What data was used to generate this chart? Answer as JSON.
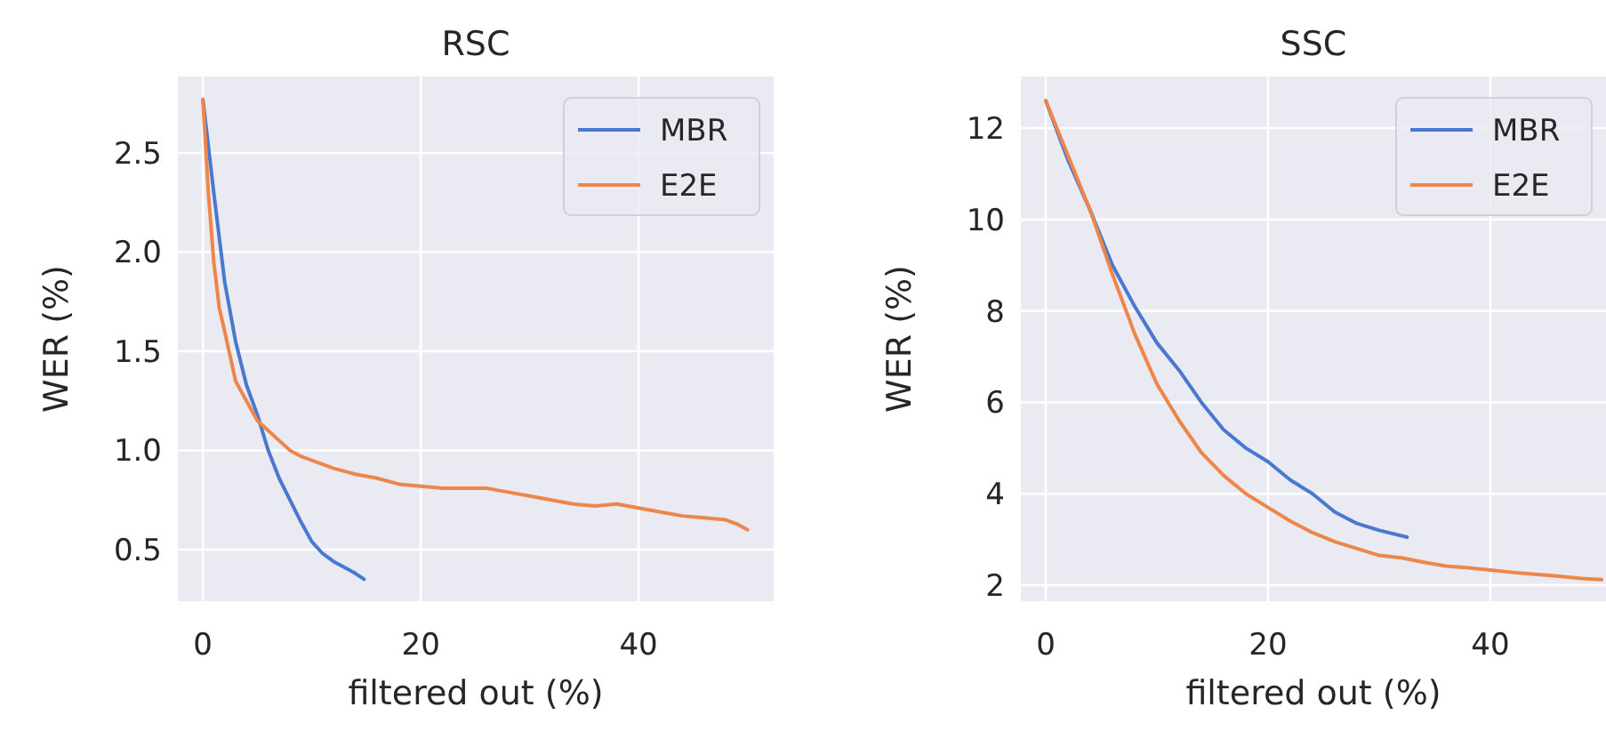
{
  "chart_data": [
    {
      "type": "line",
      "title": "RSC",
      "xlabel": "filtered out (%)",
      "ylabel": "WER (%)",
      "xlim": [
        -2.3,
        52.4
      ],
      "ylim": [
        0.24,
        2.886
      ],
      "xticks": [
        0,
        20,
        40
      ],
      "yticks": [
        0.5,
        {
          "value": 1,
          "label": "1.0"
        },
        1.5,
        {
          "value": 2,
          "label": "2.0"
        },
        2.5
      ],
      "grid": true,
      "legend": "top right",
      "line_style": "solid",
      "marker": "none",
      "series": [
        {
          "name": "MBR",
          "color": "#4878d0",
          "x": [
            0,
            1,
            2,
            3,
            4,
            5,
            6,
            7,
            8,
            9,
            10,
            11,
            12,
            13,
            14,
            14.8
          ],
          "values": [
            2.77,
            2.3,
            1.85,
            1.55,
            1.33,
            1.18,
            1.0,
            0.86,
            0.75,
            0.64,
            0.54,
            0.48,
            0.44,
            0.41,
            0.38,
            0.35
          ]
        },
        {
          "name": "E2E",
          "color": "#ee854a",
          "x": [
            0,
            0.5,
            1,
            1.5,
            2,
            3,
            4,
            5,
            6,
            7,
            8,
            9,
            10,
            12,
            14,
            16,
            18,
            20,
            22,
            24,
            26,
            28,
            30,
            32,
            34,
            36,
            38,
            40,
            42,
            44,
            46,
            48,
            49,
            50
          ],
          "values": [
            2.77,
            2.3,
            1.95,
            1.72,
            1.6,
            1.35,
            1.25,
            1.15,
            1.1,
            1.05,
            1.0,
            0.97,
            0.95,
            0.91,
            0.88,
            0.86,
            0.83,
            0.82,
            0.81,
            0.81,
            0.81,
            0.79,
            0.77,
            0.75,
            0.73,
            0.72,
            0.73,
            0.71,
            0.69,
            0.67,
            0.66,
            0.65,
            0.63,
            0.6
          ]
        }
      ]
    },
    {
      "type": "line",
      "title": "SSC",
      "xlabel": "filtered out (%)",
      "ylabel": "WER (%)",
      "xlim": [
        -2.24,
        50.4
      ],
      "ylim": [
        1.65,
        13.13
      ],
      "xticks": [
        0,
        20,
        40
      ],
      "yticks": [
        2,
        4,
        6,
        8,
        10,
        12
      ],
      "grid": true,
      "legend": "top right",
      "line_style": "solid",
      "marker": "none",
      "series": [
        {
          "name": "MBR",
          "color": "#4878d0",
          "x": [
            0,
            2,
            4,
            6,
            8,
            10,
            12,
            14,
            16,
            18,
            20,
            22,
            24,
            26,
            28,
            30,
            32.5
          ],
          "values": [
            12.6,
            11.3,
            10.2,
            9.0,
            8.1,
            7.3,
            6.7,
            6.0,
            5.4,
            5.0,
            4.7,
            4.3,
            4.0,
            3.6,
            3.35,
            3.2,
            3.05
          ]
        },
        {
          "name": "E2E",
          "color": "#ee854a",
          "x": [
            0,
            2,
            4,
            6,
            8,
            10,
            12,
            14,
            16,
            18,
            20,
            22,
            24,
            26,
            28,
            30,
            32,
            34,
            36,
            38,
            40,
            42,
            44,
            46,
            48,
            50
          ],
          "values": [
            12.6,
            11.4,
            10.2,
            8.8,
            7.5,
            6.4,
            5.6,
            4.9,
            4.4,
            4.0,
            3.7,
            3.4,
            3.15,
            2.95,
            2.8,
            2.65,
            2.6,
            2.5,
            2.42,
            2.38,
            2.33,
            2.28,
            2.24,
            2.2,
            2.15,
            2.12
          ]
        }
      ]
    }
  ]
}
